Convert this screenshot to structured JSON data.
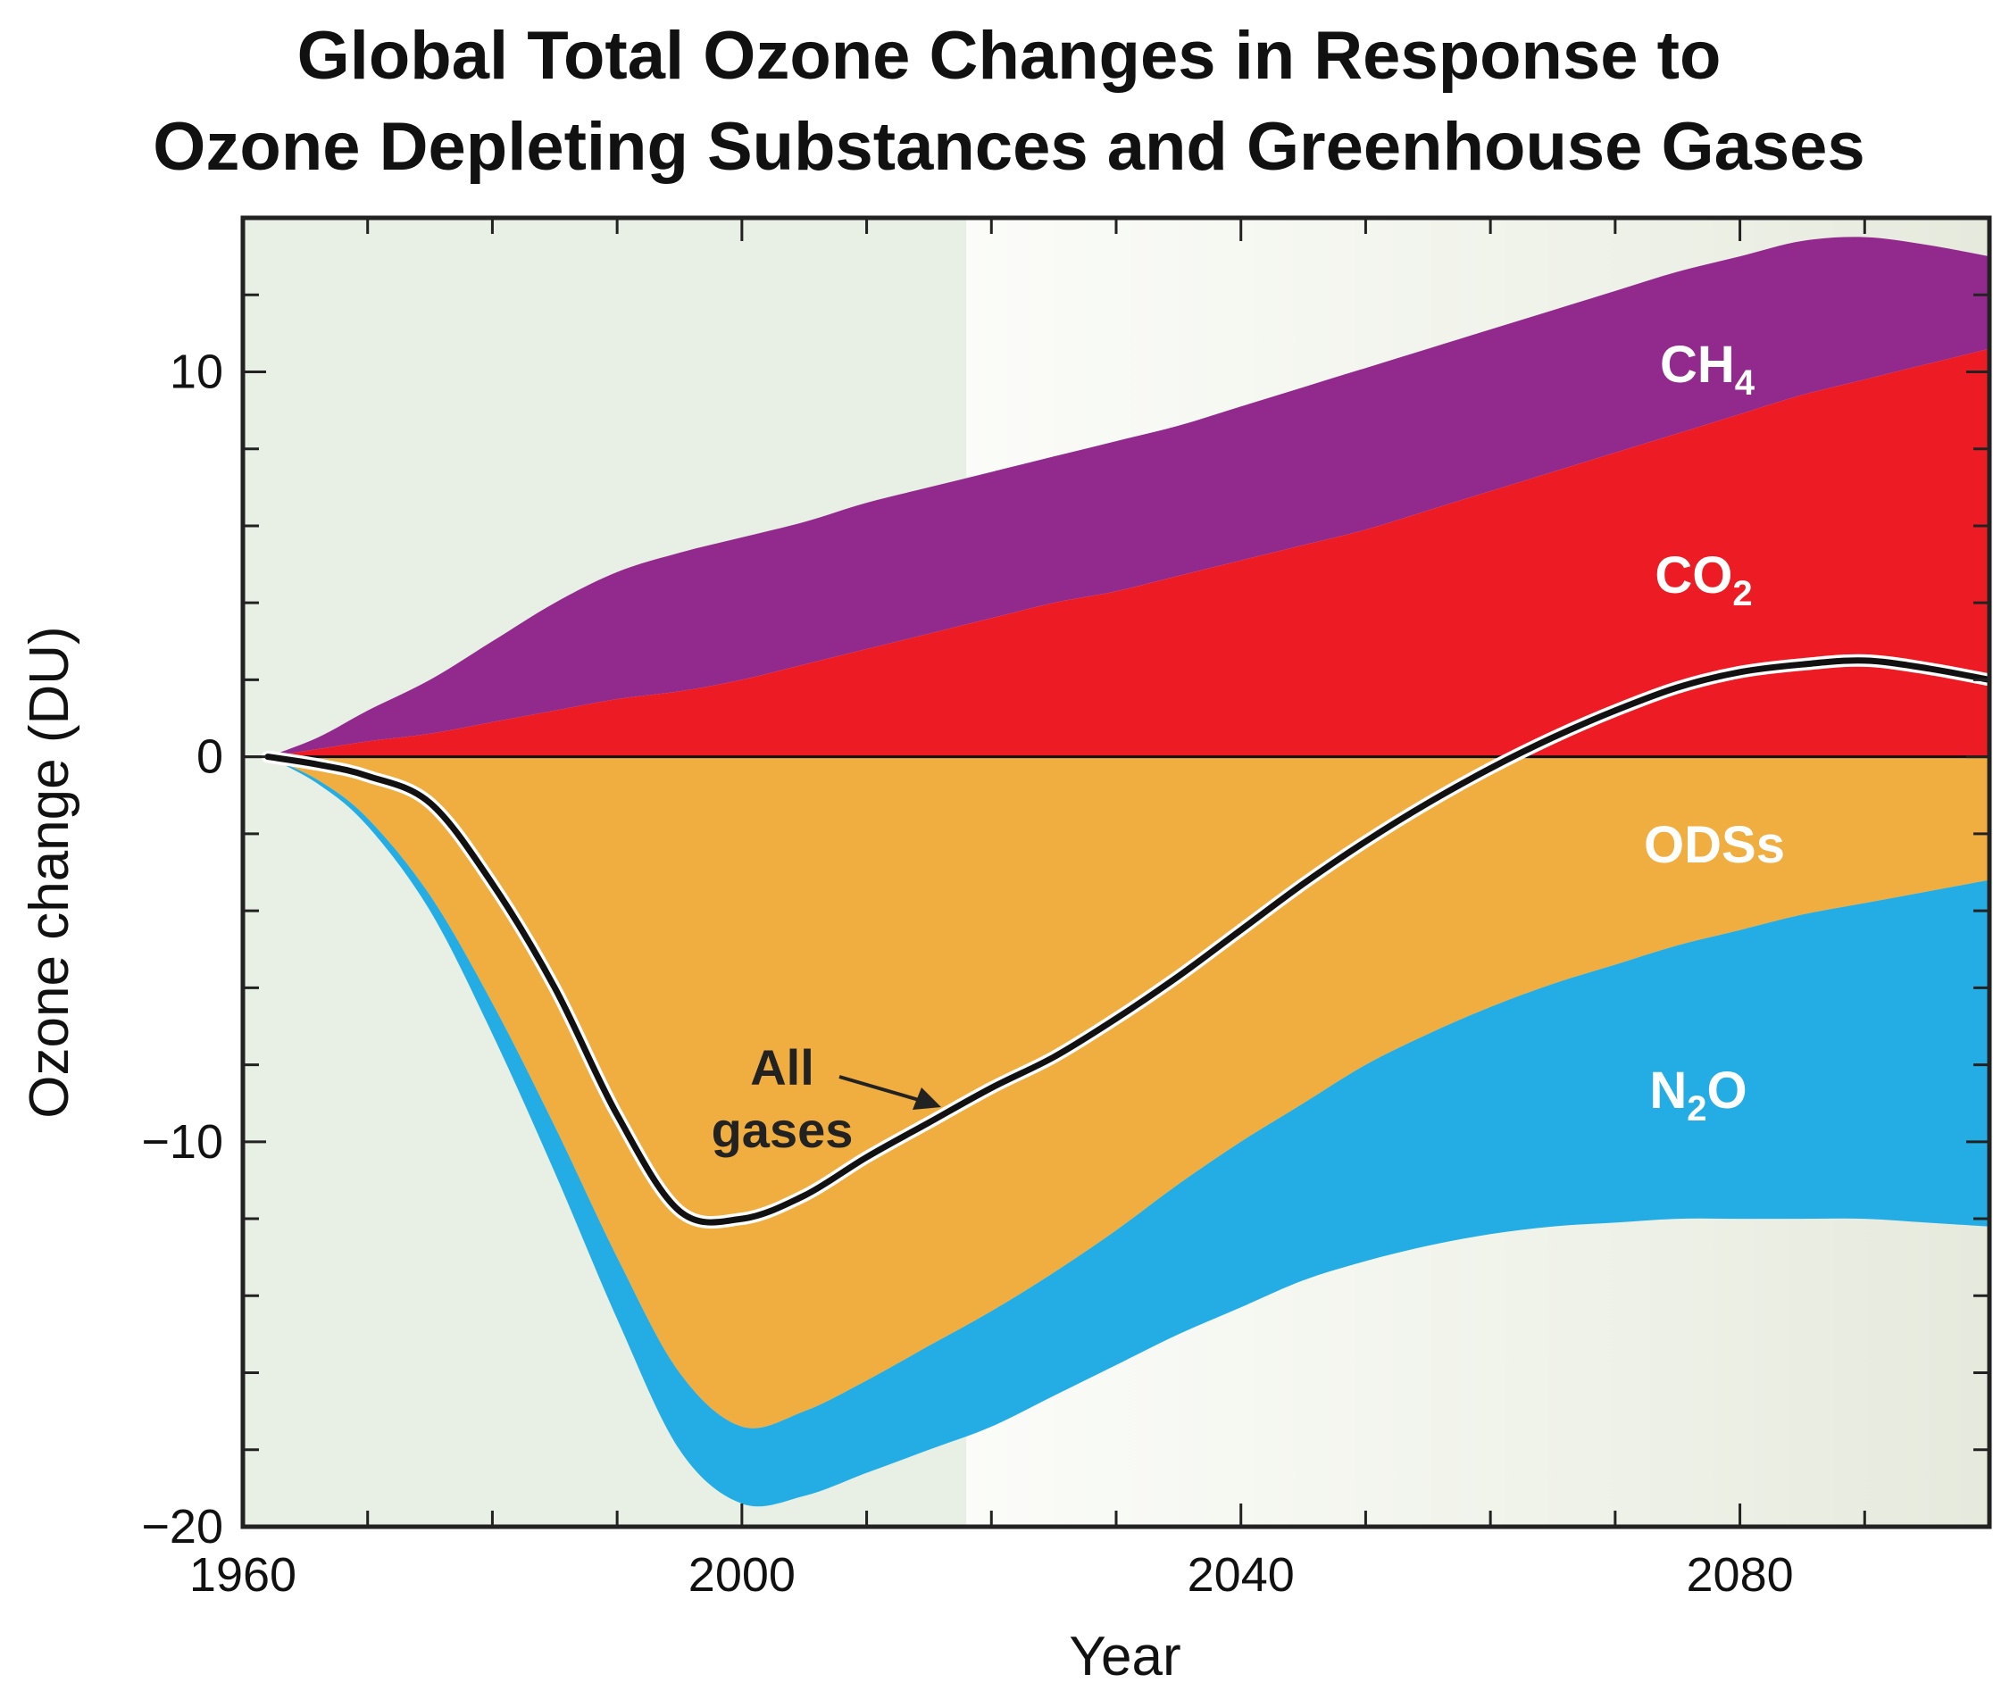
{
  "chart_data": {
    "type": "area",
    "title_lines": [
      "Global Total Ozone Changes in Response to",
      "Ozone Depleting Substances and Greenhouse Gases"
    ],
    "xlabel": "Year",
    "ylabel": "Ozone change (DU)",
    "xlim": [
      1960,
      2100
    ],
    "ylim": [
      -20,
      14
    ],
    "x_ticks": [
      1960,
      2000,
      2040,
      2080
    ],
    "x_tick_labels": [
      "1960",
      "2000",
      "2040",
      "2080"
    ],
    "y_ticks": [
      -20,
      -10,
      0,
      10
    ],
    "y_tick_labels": [
      "−20",
      "−10",
      "0",
      "10"
    ],
    "observed_period_end": 2018,
    "x": [
      1962,
      1966,
      1970,
      1975,
      1980,
      1985,
      1990,
      1995,
      2000,
      2005,
      2010,
      2015,
      2020,
      2025,
      2030,
      2035,
      2040,
      2045,
      2050,
      2055,
      2060,
      2065,
      2070,
      2075,
      2080,
      2085,
      2090,
      2095,
      2100
    ],
    "series": [
      {
        "label": "CH",
        "subscript": "4",
        "color": "#922a8e",
        "lower": [
          0,
          0.2,
          0.4,
          0.6,
          0.9,
          1.2,
          1.5,
          1.7,
          2.0,
          2.4,
          2.8,
          3.2,
          3.6,
          4.0,
          4.3,
          4.7,
          5.1,
          5.5,
          5.9,
          6.4,
          6.9,
          7.4,
          7.9,
          8.4,
          8.9,
          9.4,
          9.8,
          10.2,
          10.6
        ],
        "upper": [
          0,
          0.5,
          1.2,
          2.0,
          3.0,
          4.0,
          4.8,
          5.3,
          5.7,
          6.1,
          6.6,
          7.0,
          7.4,
          7.8,
          8.2,
          8.6,
          9.1,
          9.6,
          10.1,
          10.6,
          11.1,
          11.6,
          12.1,
          12.6,
          13.0,
          13.4,
          13.5,
          13.3,
          13.0
        ]
      },
      {
        "label": "CO",
        "subscript": "2",
        "color": "#ed1c24",
        "lower": [
          0,
          0,
          0,
          0,
          0,
          0,
          0,
          0,
          0,
          0,
          0,
          0,
          0,
          0,
          0,
          0,
          0,
          0,
          0,
          0,
          0,
          0,
          0,
          0,
          0,
          0,
          0,
          0,
          0
        ],
        "upper": [
          0,
          0.2,
          0.4,
          0.6,
          0.9,
          1.2,
          1.5,
          1.7,
          2.0,
          2.4,
          2.8,
          3.2,
          3.6,
          4.0,
          4.3,
          4.7,
          5.1,
          5.5,
          5.9,
          6.4,
          6.9,
          7.4,
          7.9,
          8.4,
          8.9,
          9.4,
          9.8,
          10.2,
          10.6
        ]
      },
      {
        "label": "ODSs",
        "subscript": "",
        "color": "#f0ad40",
        "lower": [
          0,
          -0.6,
          -1.6,
          -3.6,
          -6.4,
          -9.6,
          -13.0,
          -16.0,
          -17.4,
          -17.0,
          -16.2,
          -15.3,
          -14.4,
          -13.4,
          -12.3,
          -11.1,
          -10.0,
          -9.0,
          -8.0,
          -7.2,
          -6.5,
          -5.9,
          -5.4,
          -4.9,
          -4.5,
          -4.1,
          -3.8,
          -3.5,
          -3.2
        ],
        "upper": [
          0,
          0,
          0,
          0,
          0,
          0,
          0,
          0,
          0,
          0,
          0,
          0,
          0,
          0,
          0,
          0,
          0,
          0,
          0,
          0,
          0,
          0,
          0,
          0,
          0,
          0,
          0,
          0,
          0
        ]
      },
      {
        "label": "N",
        "subscript": "2",
        "label_suffix": "O",
        "color": "#24ade4",
        "lower": [
          0,
          -0.7,
          -1.8,
          -4.0,
          -7.2,
          -10.8,
          -14.6,
          -18.0,
          -19.4,
          -19.2,
          -18.6,
          -18.0,
          -17.4,
          -16.6,
          -15.8,
          -15.0,
          -14.3,
          -13.6,
          -13.1,
          -12.7,
          -12.4,
          -12.2,
          -12.1,
          -12.0,
          -12.0,
          -12.0,
          -12.0,
          -12.1,
          -12.2
        ],
        "upper": [
          0,
          -0.6,
          -1.6,
          -3.6,
          -6.4,
          -9.6,
          -13.0,
          -16.0,
          -17.4,
          -17.0,
          -16.2,
          -15.3,
          -14.4,
          -13.4,
          -12.3,
          -11.1,
          -10.0,
          -9.0,
          -8.0,
          -7.2,
          -6.5,
          -5.9,
          -5.4,
          -4.9,
          -4.5,
          -4.1,
          -3.8,
          -3.5,
          -3.2
        ]
      }
    ],
    "all_gases": {
      "label_lines": [
        "All",
        "gases"
      ],
      "values": [
        0,
        -0.2,
        -0.5,
        -1.2,
        -3.3,
        -6.0,
        -9.3,
        -11.8,
        -12.0,
        -11.4,
        -10.4,
        -9.5,
        -8.6,
        -7.8,
        -6.8,
        -5.7,
        -4.5,
        -3.3,
        -2.2,
        -1.2,
        -0.3,
        0.5,
        1.2,
        1.8,
        2.2,
        2.4,
        2.5,
        2.3,
        2.0
      ]
    }
  }
}
